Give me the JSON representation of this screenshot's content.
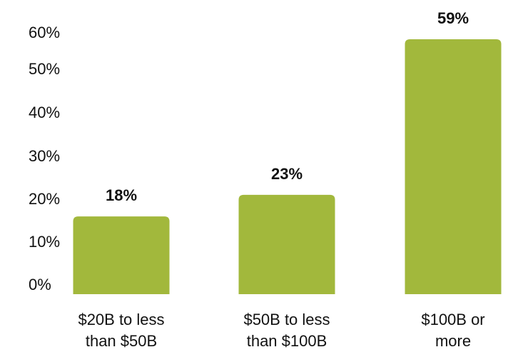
{
  "chart_data": {
    "type": "bar",
    "categories": [
      [
        "$20B to less",
        "than $50B"
      ],
      [
        "$50B to less",
        "than $100B"
      ],
      [
        "$100B or",
        "more"
      ]
    ],
    "values": [
      18,
      23,
      59
    ],
    "value_labels": [
      "18%",
      "23%",
      "59%"
    ],
    "y_ticks": [
      0,
      10,
      20,
      30,
      40,
      50,
      60
    ],
    "y_tick_labels": [
      "0%",
      "10%",
      "20%",
      "30%",
      "40%",
      "50%",
      "60%"
    ],
    "ylim": [
      0,
      60
    ],
    "grid": false,
    "legend": "none",
    "bar_color": "#a2b83c"
  }
}
